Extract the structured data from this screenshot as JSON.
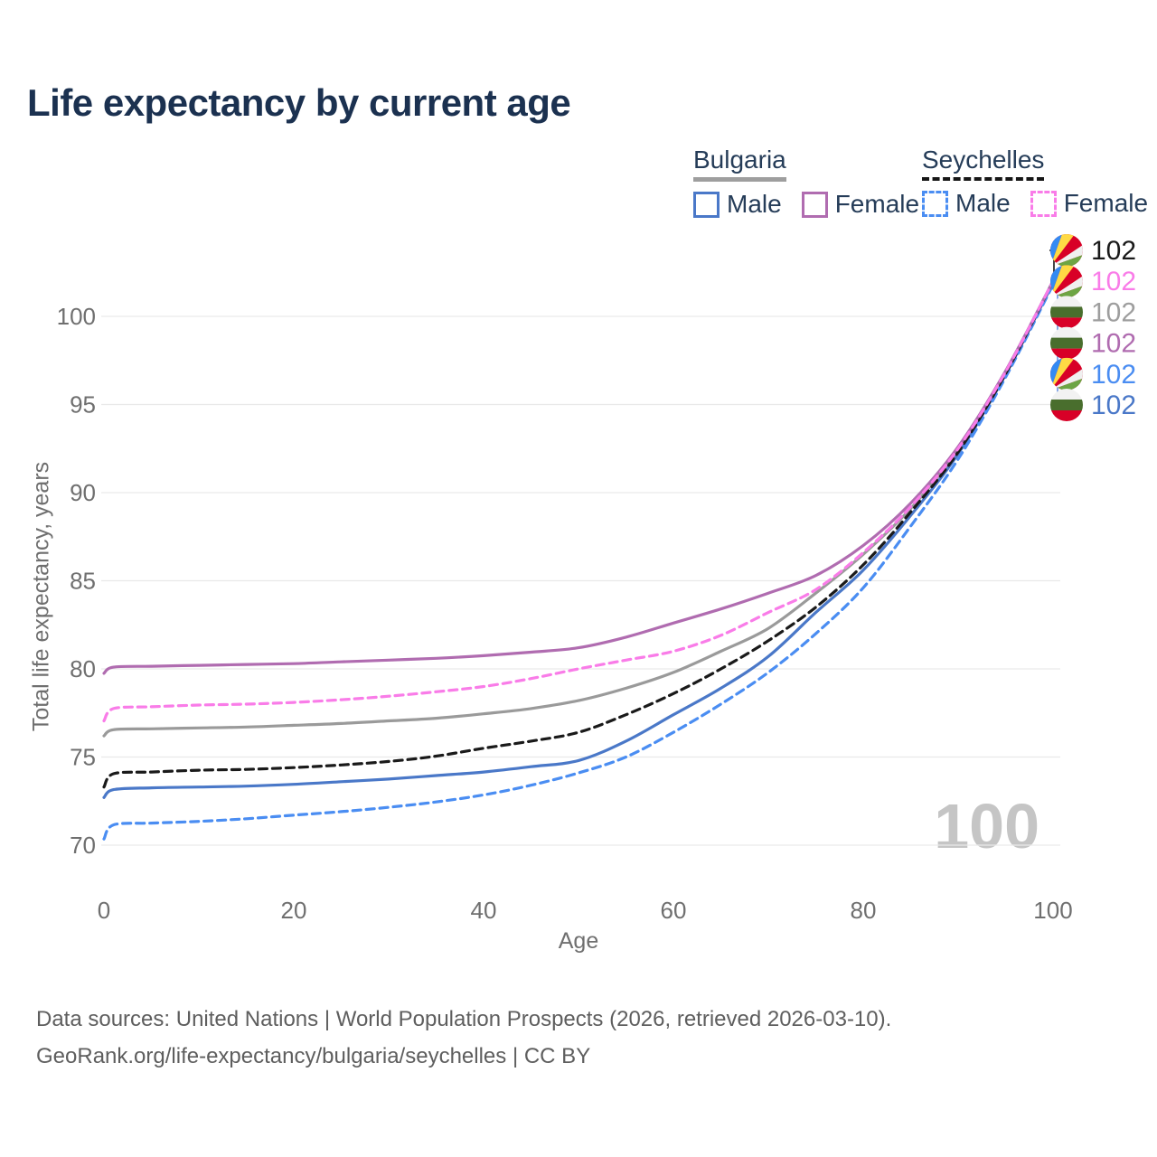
{
  "title": "Life expectancy by current age",
  "legend": {
    "groups": [
      {
        "country": "Bulgaria",
        "style": "solid",
        "items": [
          {
            "label": "Male",
            "color": "#4a78c8"
          },
          {
            "label": "Female",
            "color": "#b06cb0"
          }
        ]
      },
      {
        "country": "Seychelles",
        "style": "dashed",
        "items": [
          {
            "label": "Male",
            "color": "#4a8df2"
          },
          {
            "label": "Female",
            "color": "#f97ce8"
          }
        ]
      }
    ]
  },
  "chart_data": {
    "type": "line",
    "title": "Life expectancy by current age",
    "xlabel": "Age",
    "ylabel": "Total life expectancy, years",
    "xticks": [
      0,
      20,
      40,
      60,
      80,
      100
    ],
    "yticks": [
      70,
      75,
      80,
      85,
      90,
      95,
      100
    ],
    "xlim": [
      0,
      100
    ],
    "ylim": [
      69,
      103
    ],
    "grid": "horizontal",
    "legend_position": "top-right",
    "watermark": "100",
    "x": [
      0,
      1,
      5,
      10,
      15,
      20,
      25,
      30,
      35,
      40,
      45,
      50,
      55,
      60,
      65,
      70,
      75,
      80,
      85,
      90,
      95,
      100
    ],
    "series": [
      {
        "id": "bulgaria-total",
        "name": "Bulgaria (both sexes)",
        "country": "Bulgaria",
        "sex": "total",
        "color": "#9a9a9a",
        "dash": false,
        "values": [
          76.2,
          76.55,
          76.6,
          76.65,
          76.7,
          76.8,
          76.9,
          77.05,
          77.2,
          77.45,
          77.75,
          78.2,
          78.9,
          79.8,
          81.0,
          82.3,
          84.3,
          86.5,
          89.1,
          92.4,
          96.8,
          102
        ]
      },
      {
        "id": "bulgaria-male",
        "name": "Bulgaria Male",
        "country": "Bulgaria",
        "sex": "male",
        "color": "#4a78c8",
        "dash": false,
        "values": [
          72.7,
          73.15,
          73.25,
          73.3,
          73.35,
          73.45,
          73.6,
          73.75,
          73.95,
          74.15,
          74.45,
          74.8,
          75.9,
          77.4,
          78.9,
          80.7,
          83.2,
          85.6,
          88.7,
          92.2,
          96.7,
          101.9
        ]
      },
      {
        "id": "seychelles-male",
        "name": "Seychelles Male",
        "country": "Seychelles",
        "sex": "male",
        "color": "#4a8df2",
        "dash": true,
        "values": [
          70.35,
          71.15,
          71.25,
          71.35,
          71.5,
          71.7,
          71.9,
          72.15,
          72.45,
          72.85,
          73.4,
          74.1,
          75.0,
          76.4,
          78.0,
          79.8,
          82.0,
          84.6,
          88.1,
          91.9,
          96.55,
          101.8
        ]
      },
      {
        "id": "seychelles-total",
        "name": "Seychelles (both sexes)",
        "country": "Seychelles",
        "sex": "total",
        "color": "#1a1a1a",
        "dash": true,
        "values": [
          73.3,
          74.05,
          74.15,
          74.25,
          74.3,
          74.4,
          74.55,
          74.75,
          75.05,
          75.5,
          75.9,
          76.4,
          77.4,
          78.6,
          80.0,
          81.6,
          83.5,
          85.9,
          88.9,
          92.3,
          96.75,
          102
        ]
      },
      {
        "id": "bulgaria-female",
        "name": "Bulgaria Female",
        "country": "Bulgaria",
        "sex": "female",
        "color": "#b06cb0",
        "dash": false,
        "values": [
          79.75,
          80.1,
          80.15,
          80.2,
          80.25,
          80.3,
          80.4,
          80.5,
          80.6,
          80.75,
          80.95,
          81.2,
          81.8,
          82.6,
          83.4,
          84.3,
          85.3,
          87.0,
          89.4,
          92.6,
          96.9,
          102
        ]
      },
      {
        "id": "seychelles-female",
        "name": "Seychelles Female",
        "country": "Seychelles",
        "sex": "female",
        "color": "#f97ce8",
        "dash": true,
        "values": [
          77.05,
          77.75,
          77.85,
          77.95,
          78.0,
          78.1,
          78.25,
          78.45,
          78.7,
          79.0,
          79.45,
          80.0,
          80.5,
          81.0,
          81.9,
          83.2,
          84.5,
          86.6,
          89.2,
          92.5,
          96.85,
          102
        ]
      }
    ],
    "end_labels": [
      {
        "id": "seychelles-total",
        "flag": "sc",
        "color": "#1a1a1a",
        "value": "102"
      },
      {
        "id": "seychelles-female",
        "flag": "sc",
        "color": "#f97ce8",
        "value": "102"
      },
      {
        "id": "bulgaria-total",
        "flag": "bg",
        "color": "#9e9e9e",
        "value": "102"
      },
      {
        "id": "bulgaria-female",
        "flag": "bg",
        "color": "#b06cb0",
        "value": "102"
      },
      {
        "id": "seychelles-male",
        "flag": "sc",
        "color": "#4a8df2",
        "value": "102"
      },
      {
        "id": "bulgaria-male",
        "flag": "bg",
        "color": "#4a78c8",
        "value": "102"
      }
    ],
    "flag_colors": {
      "bg": {
        "white": "#f2f2f2",
        "green": "#496e2d",
        "red": "#d80027"
      },
      "sc": {
        "blue": "#338af3",
        "yellow": "#ffda44",
        "red": "#d80027",
        "white": "#f0f0f0",
        "green": "#6da544"
      }
    }
  },
  "footer": {
    "line1": "Data sources: United Nations | World Population Prospects (2026, retrieved 2026-03-10).",
    "line2": "GeoRank.org/life-expectancy/bulgaria/seychelles | CC BY"
  }
}
